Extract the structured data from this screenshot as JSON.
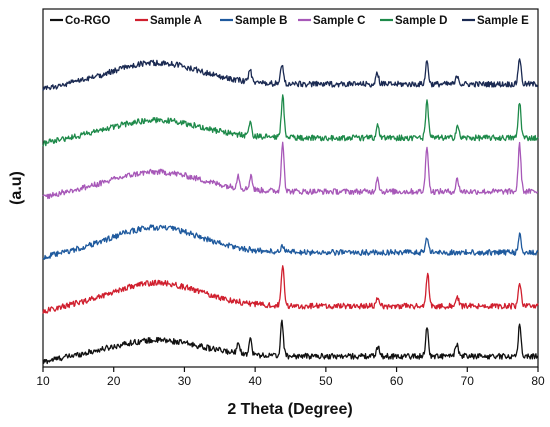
{
  "chart_data": {
    "type": "line",
    "title": "",
    "xlabel": "2 Theta (Degree)",
    "ylabel": "(a.u)",
    "xlim": [
      10,
      80
    ],
    "x_ticks": [
      10,
      20,
      30,
      40,
      50,
      60,
      70,
      80
    ],
    "y_ticks_shown": false,
    "grid": false,
    "legend_position": "top",
    "series": [
      {
        "name": "Co-RGO",
        "color": "#111111",
        "baseline": 0.03,
        "hump": {
          "center": 26,
          "height": 0.045
        },
        "peaks": [
          [
            37.6,
            0.035
          ],
          [
            39.3,
            0.045
          ],
          [
            43.8,
            0.095
          ],
          [
            57.4,
            0.03
          ],
          [
            64.3,
            0.08
          ],
          [
            68.5,
            0.035
          ],
          [
            77.4,
            0.085
          ]
        ]
      },
      {
        "name": "Sample A",
        "color": "#d01f2e",
        "baseline": 0.17,
        "hump": {
          "center": 26,
          "height": 0.065
        },
        "peaks": [
          [
            43.9,
            0.11
          ],
          [
            57.3,
            0.025
          ],
          [
            64.4,
            0.09
          ],
          [
            68.6,
            0.025
          ],
          [
            77.4,
            0.07
          ]
        ]
      },
      {
        "name": "Sample B",
        "color": "#1f5a9e",
        "baseline": 0.32,
        "hump": {
          "center": 26,
          "height": 0.07
        },
        "peaks": [
          [
            43.9,
            0.02
          ],
          [
            64.3,
            0.045
          ],
          [
            77.4,
            0.05
          ]
        ]
      },
      {
        "name": "Sample C",
        "color": "#a758b8",
        "baseline": 0.49,
        "hump": {
          "center": 26,
          "height": 0.055
        },
        "peaks": [
          [
            37.6,
            0.035
          ],
          [
            39.4,
            0.04
          ],
          [
            43.9,
            0.14
          ],
          [
            57.3,
            0.04
          ],
          [
            64.3,
            0.13
          ],
          [
            68.6,
            0.035
          ],
          [
            77.4,
            0.13
          ]
        ]
      },
      {
        "name": "Sample D",
        "color": "#1e8a4a",
        "baseline": 0.64,
        "hump": {
          "center": 26,
          "height": 0.05
        },
        "peaks": [
          [
            39.3,
            0.04
          ],
          [
            43.9,
            0.12
          ],
          [
            57.3,
            0.035
          ],
          [
            64.3,
            0.1
          ],
          [
            68.6,
            0.035
          ],
          [
            77.4,
            0.1
          ]
        ]
      },
      {
        "name": "Sample E",
        "color": "#1b2a52",
        "baseline": 0.79,
        "hump": {
          "center": 26,
          "height": 0.06
        },
        "peaks": [
          [
            39.3,
            0.035
          ],
          [
            43.8,
            0.055
          ],
          [
            57.3,
            0.03
          ],
          [
            64.3,
            0.065
          ],
          [
            68.6,
            0.025
          ],
          [
            77.4,
            0.075
          ]
        ]
      }
    ]
  }
}
